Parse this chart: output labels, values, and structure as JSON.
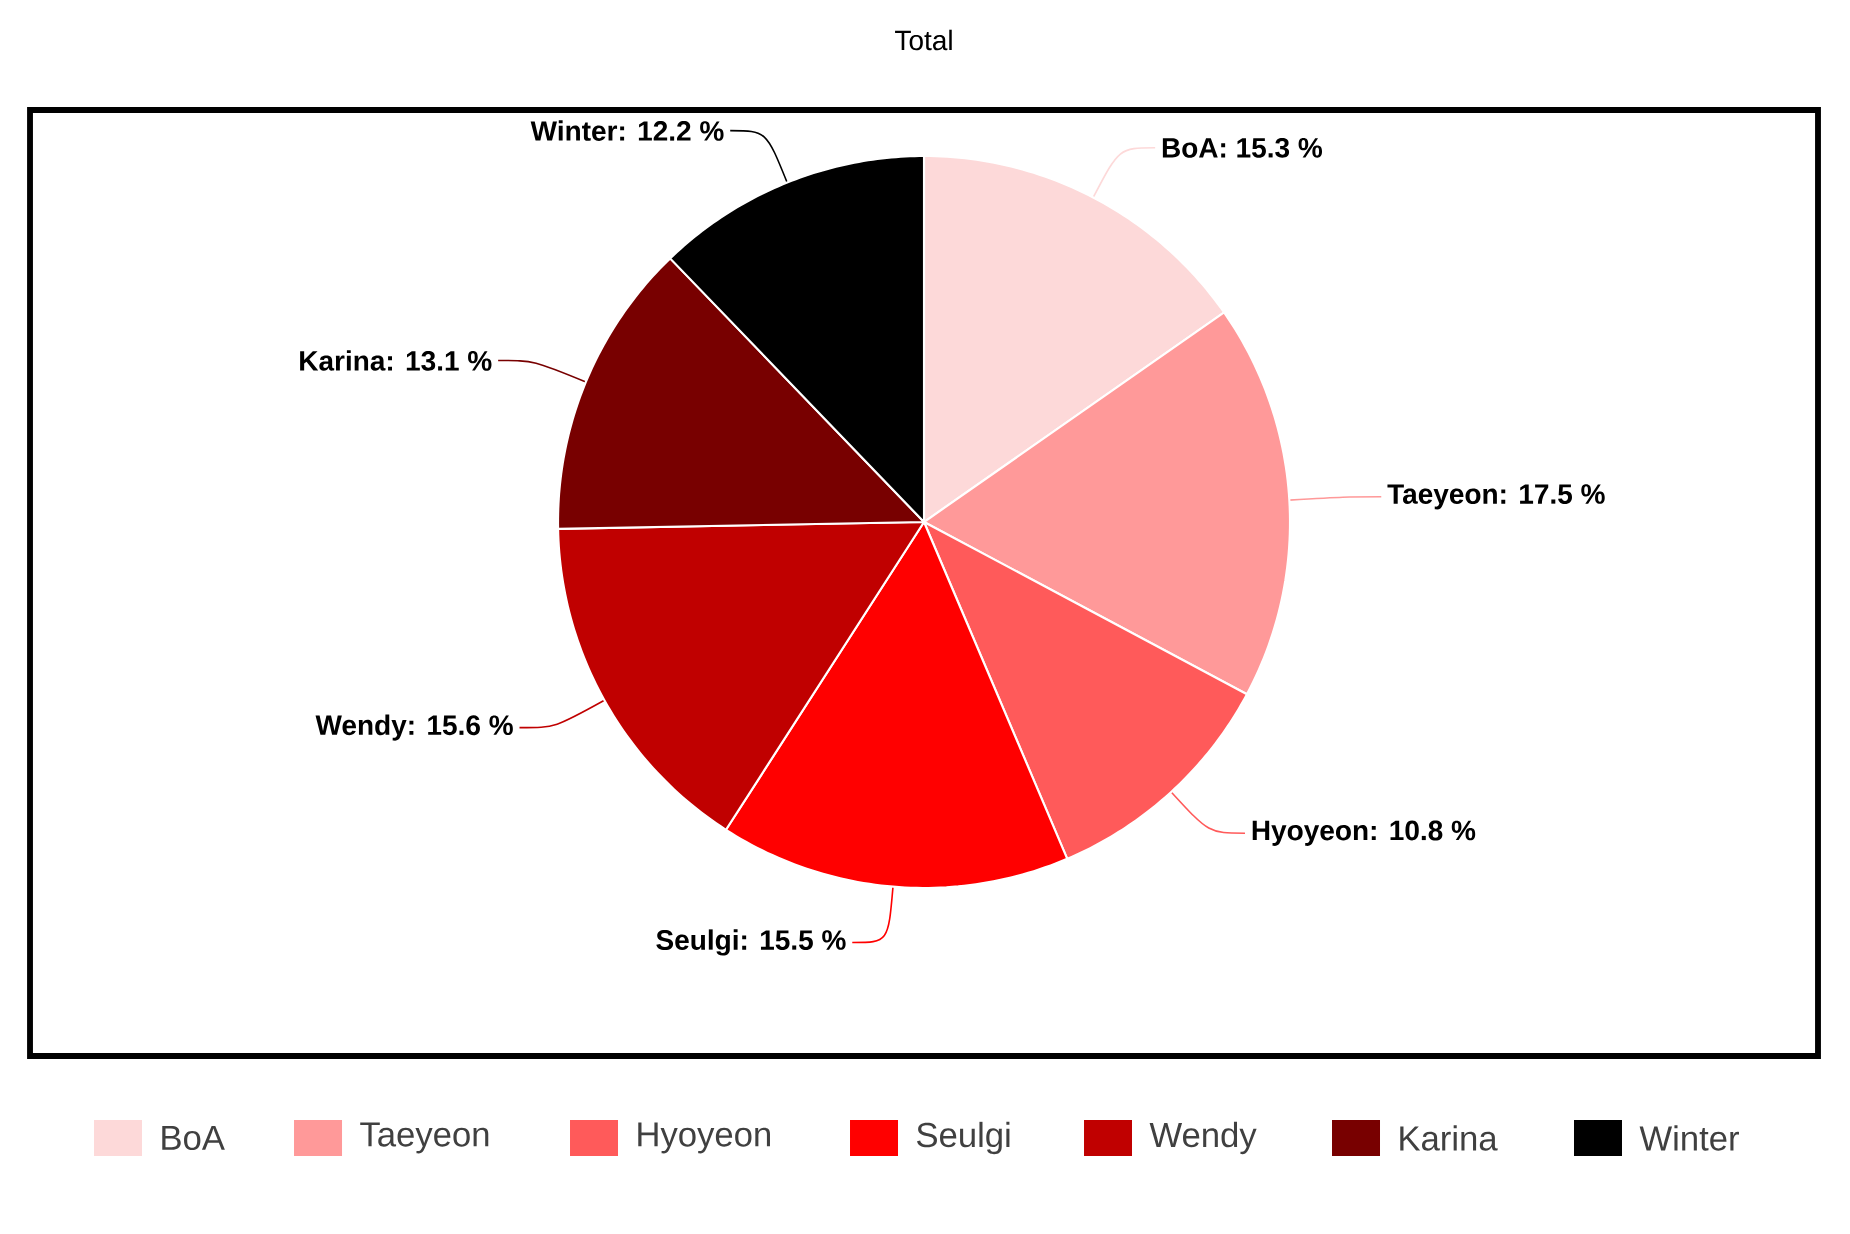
{
  "chart_data": {
    "type": "pie",
    "title": "Total",
    "categories": [
      "BoA",
      "Taeyeon",
      "Hyoyeon",
      "Seulgi",
      "Wendy",
      "Karina",
      "Winter"
    ],
    "values": [
      15.3,
      17.5,
      10.8,
      15.5,
      15.6,
      13.1,
      12.2
    ],
    "value_labels": [
      "BoA: 15.3 %",
      "Taeyeon: 17.5 %",
      "Hyoyeon: 10.8 %",
      "Seulgi: 15.5 %",
      "Wendy: 15.6 %",
      "Karina: 13.1 %",
      "Winter: 12.2 %"
    ],
    "colors": [
      "#fdd9d9",
      "#ff9999",
      "#ff5a5a",
      "#ff0000",
      "#c00000",
      "#780000",
      "#000000"
    ],
    "legend": "bottom"
  }
}
